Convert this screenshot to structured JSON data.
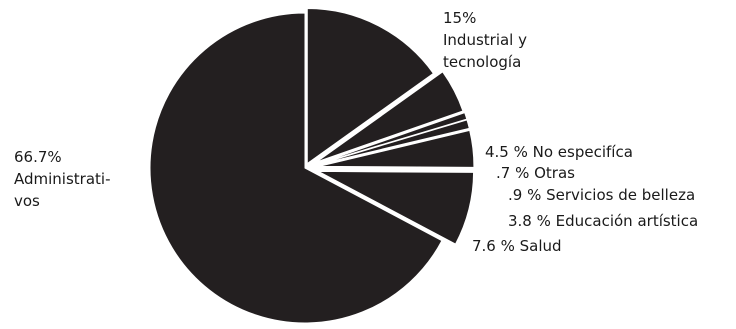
{
  "chart_data": {
    "type": "pie",
    "title": "",
    "colors": {
      "slice": "#231f20",
      "text": "#1a1a1a"
    },
    "slices": [
      {
        "value": 15,
        "label_lines": [
          "15%",
          "Industrial y",
          "tecnología"
        ]
      },
      {
        "value": 4.5,
        "label_lines": [
          "4.5 % No especifíca"
        ]
      },
      {
        "value": 0.7,
        "label_lines": [
          ".7 % Otras"
        ]
      },
      {
        "value": 0.9,
        "label_lines": [
          ".9 % Servicios de belleza"
        ]
      },
      {
        "value": 3.8,
        "label_lines": [
          "3.8 % Educación artística"
        ]
      },
      {
        "value": 7.6,
        "label_lines": [
          "7.6 % Salud"
        ]
      },
      {
        "value": 66.7,
        "label_lines": [
          "66.7%",
          "Administrati-",
          "vos"
        ]
      }
    ]
  }
}
